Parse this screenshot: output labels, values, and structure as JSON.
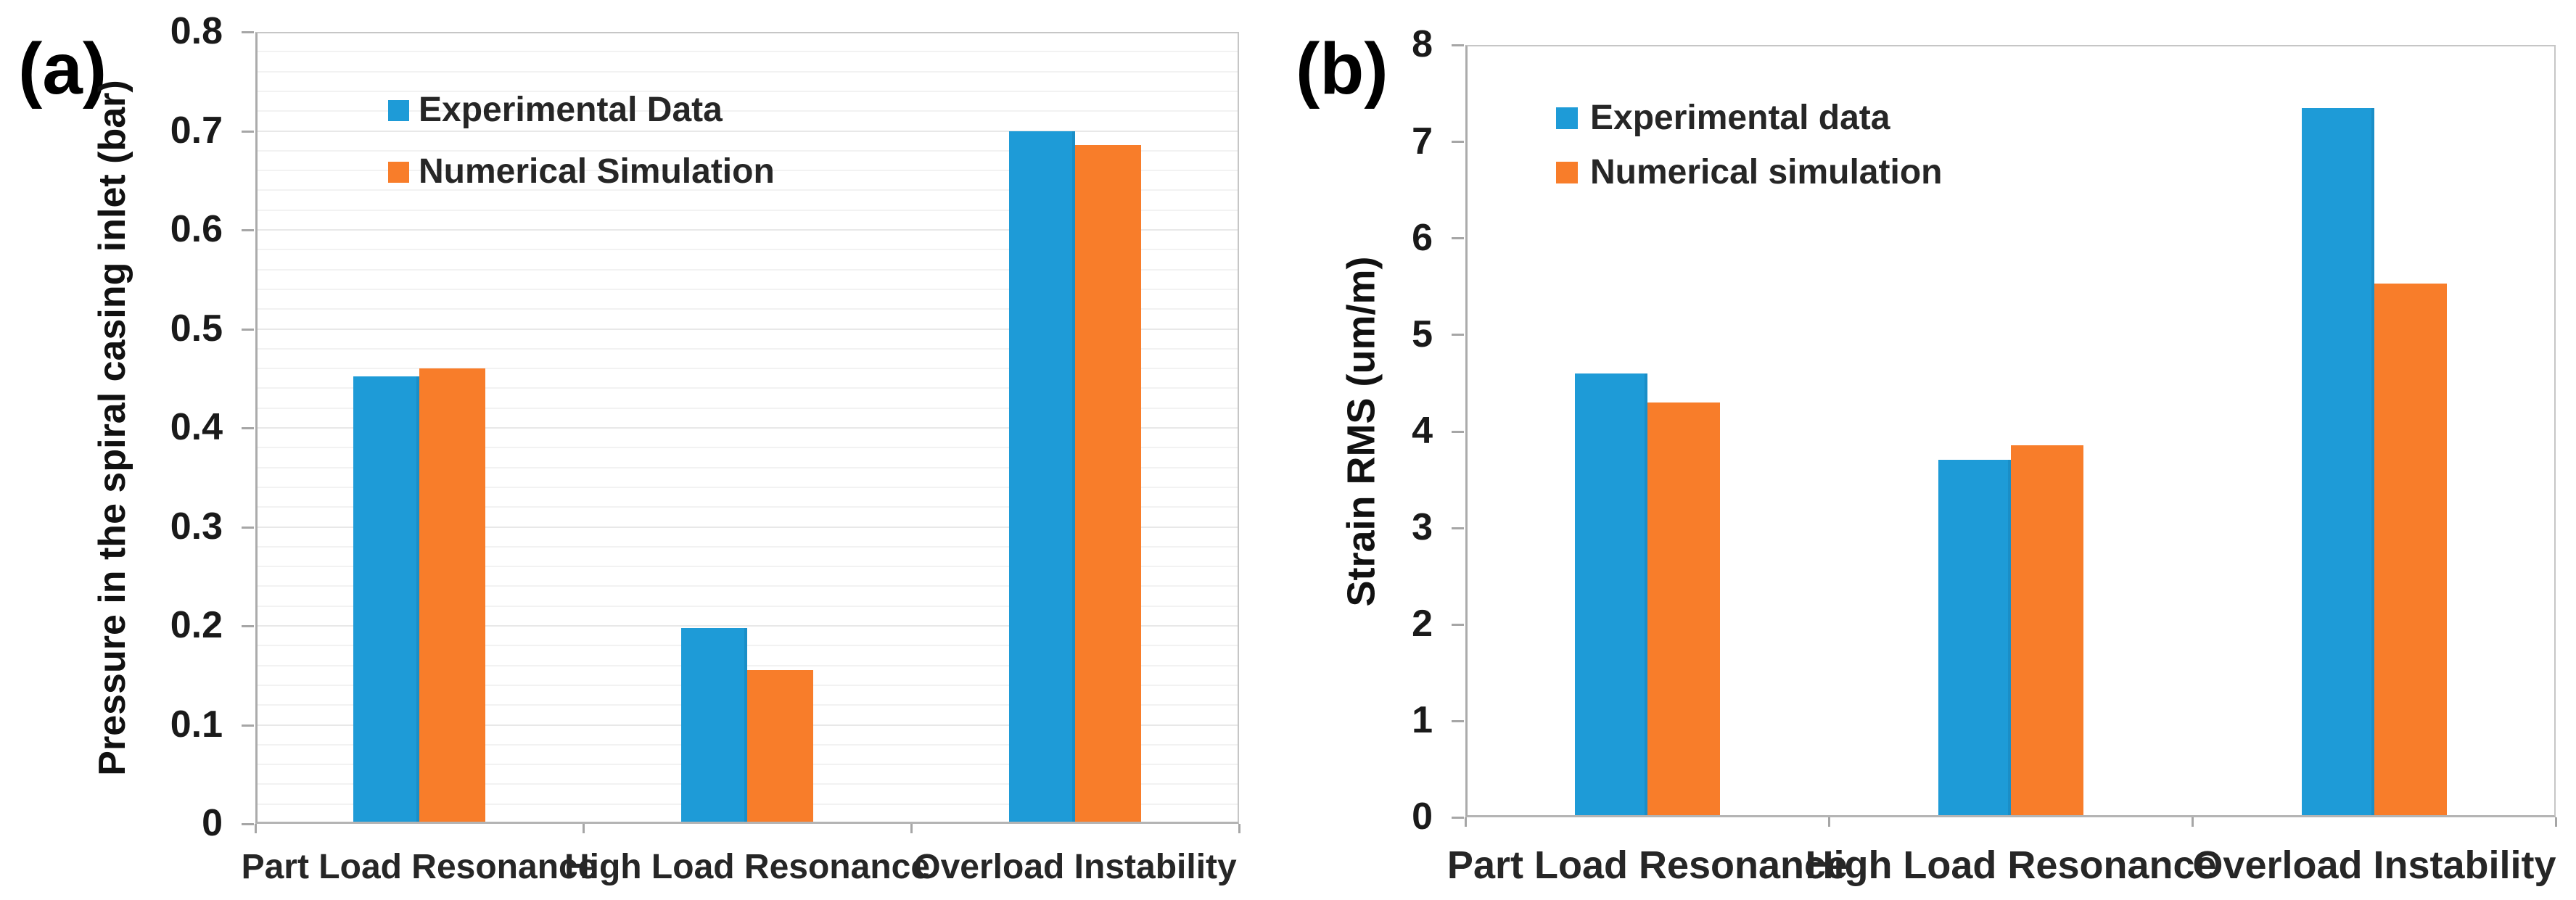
{
  "styles": {
    "series_blue": "#1E9BD7",
    "series_orange": "#F87D2A",
    "gridline_minor": "#F2F2F2",
    "gridline_major": "#E8E8E8",
    "axis_line": "#ABABAB",
    "plot_border": "#C6C6C6",
    "text_primary": "#1A1A1A",
    "text_secondary": "#262626"
  },
  "chart_data": [
    {
      "type": "bar",
      "panel_label": "(a)",
      "ylabel": "Pressure in the spiral casing inlet (bar)",
      "xlabel": "",
      "categories": [
        "Part Load Resonance",
        "High Load Resonance",
        "Overload Instability"
      ],
      "series": [
        {
          "name": "Experimental Data",
          "color": "#1E9BD7",
          "values": [
            0.452,
            0.198,
            0.7
          ]
        },
        {
          "name": "Numerical Simulation",
          "color": "#F87D2A",
          "values": [
            0.46,
            0.155,
            0.686
          ]
        }
      ],
      "ylim": [
        0,
        0.8
      ],
      "ytick_step": 0.1,
      "ytick_labels": [
        "0",
        "0.1",
        "0.2",
        "0.3",
        "0.4",
        "0.5",
        "0.6",
        "0.7",
        "0.8"
      ],
      "minor_gridline_step": 0.02,
      "grid": true,
      "legend_position": "inside-top-left"
    },
    {
      "type": "bar",
      "panel_label": "(b)",
      "ylabel": "Strain RMS (um/m)",
      "xlabel": "",
      "categories": [
        "Part Load Resonance",
        "High Load Resonance",
        "Overload Instability"
      ],
      "series": [
        {
          "name": "Experimental data",
          "color": "#1E9BD7",
          "values": [
            4.6,
            3.7,
            7.35
          ]
        },
        {
          "name": "Numerical simulation",
          "color": "#F87D2A",
          "values": [
            4.3,
            3.85,
            5.53
          ]
        }
      ],
      "ylim": [
        0,
        8
      ],
      "ytick_step": 1,
      "ytick_labels": [
        "0",
        "1",
        "2",
        "3",
        "4",
        "5",
        "6",
        "7",
        "8"
      ],
      "minor_gridline_step": 0,
      "grid": false,
      "legend_position": "inside-top-left"
    }
  ]
}
